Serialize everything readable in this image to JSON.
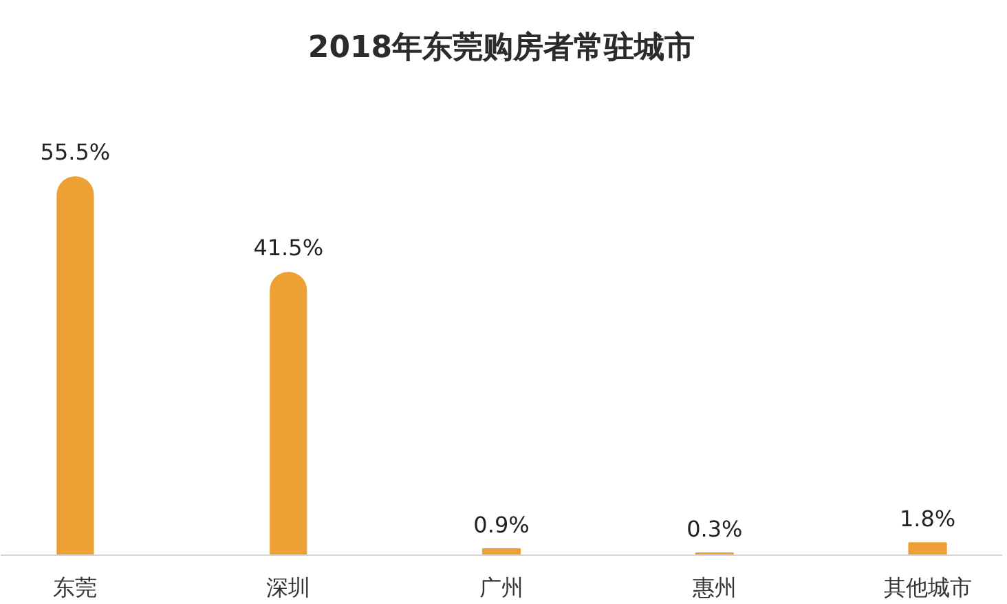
{
  "chart_data": {
    "type": "bar",
    "title": "2018年东莞购房者常驻城市",
    "categories": [
      "东莞",
      "深圳",
      "广州",
      "惠州",
      "其他城市"
    ],
    "values": [
      55.5,
      41.5,
      0.9,
      0.3,
      1.8
    ],
    "value_labels": [
      "55.5%",
      "41.5%",
      "0.9%",
      "0.3%",
      "1.8%"
    ],
    "color": "#eda033"
  }
}
